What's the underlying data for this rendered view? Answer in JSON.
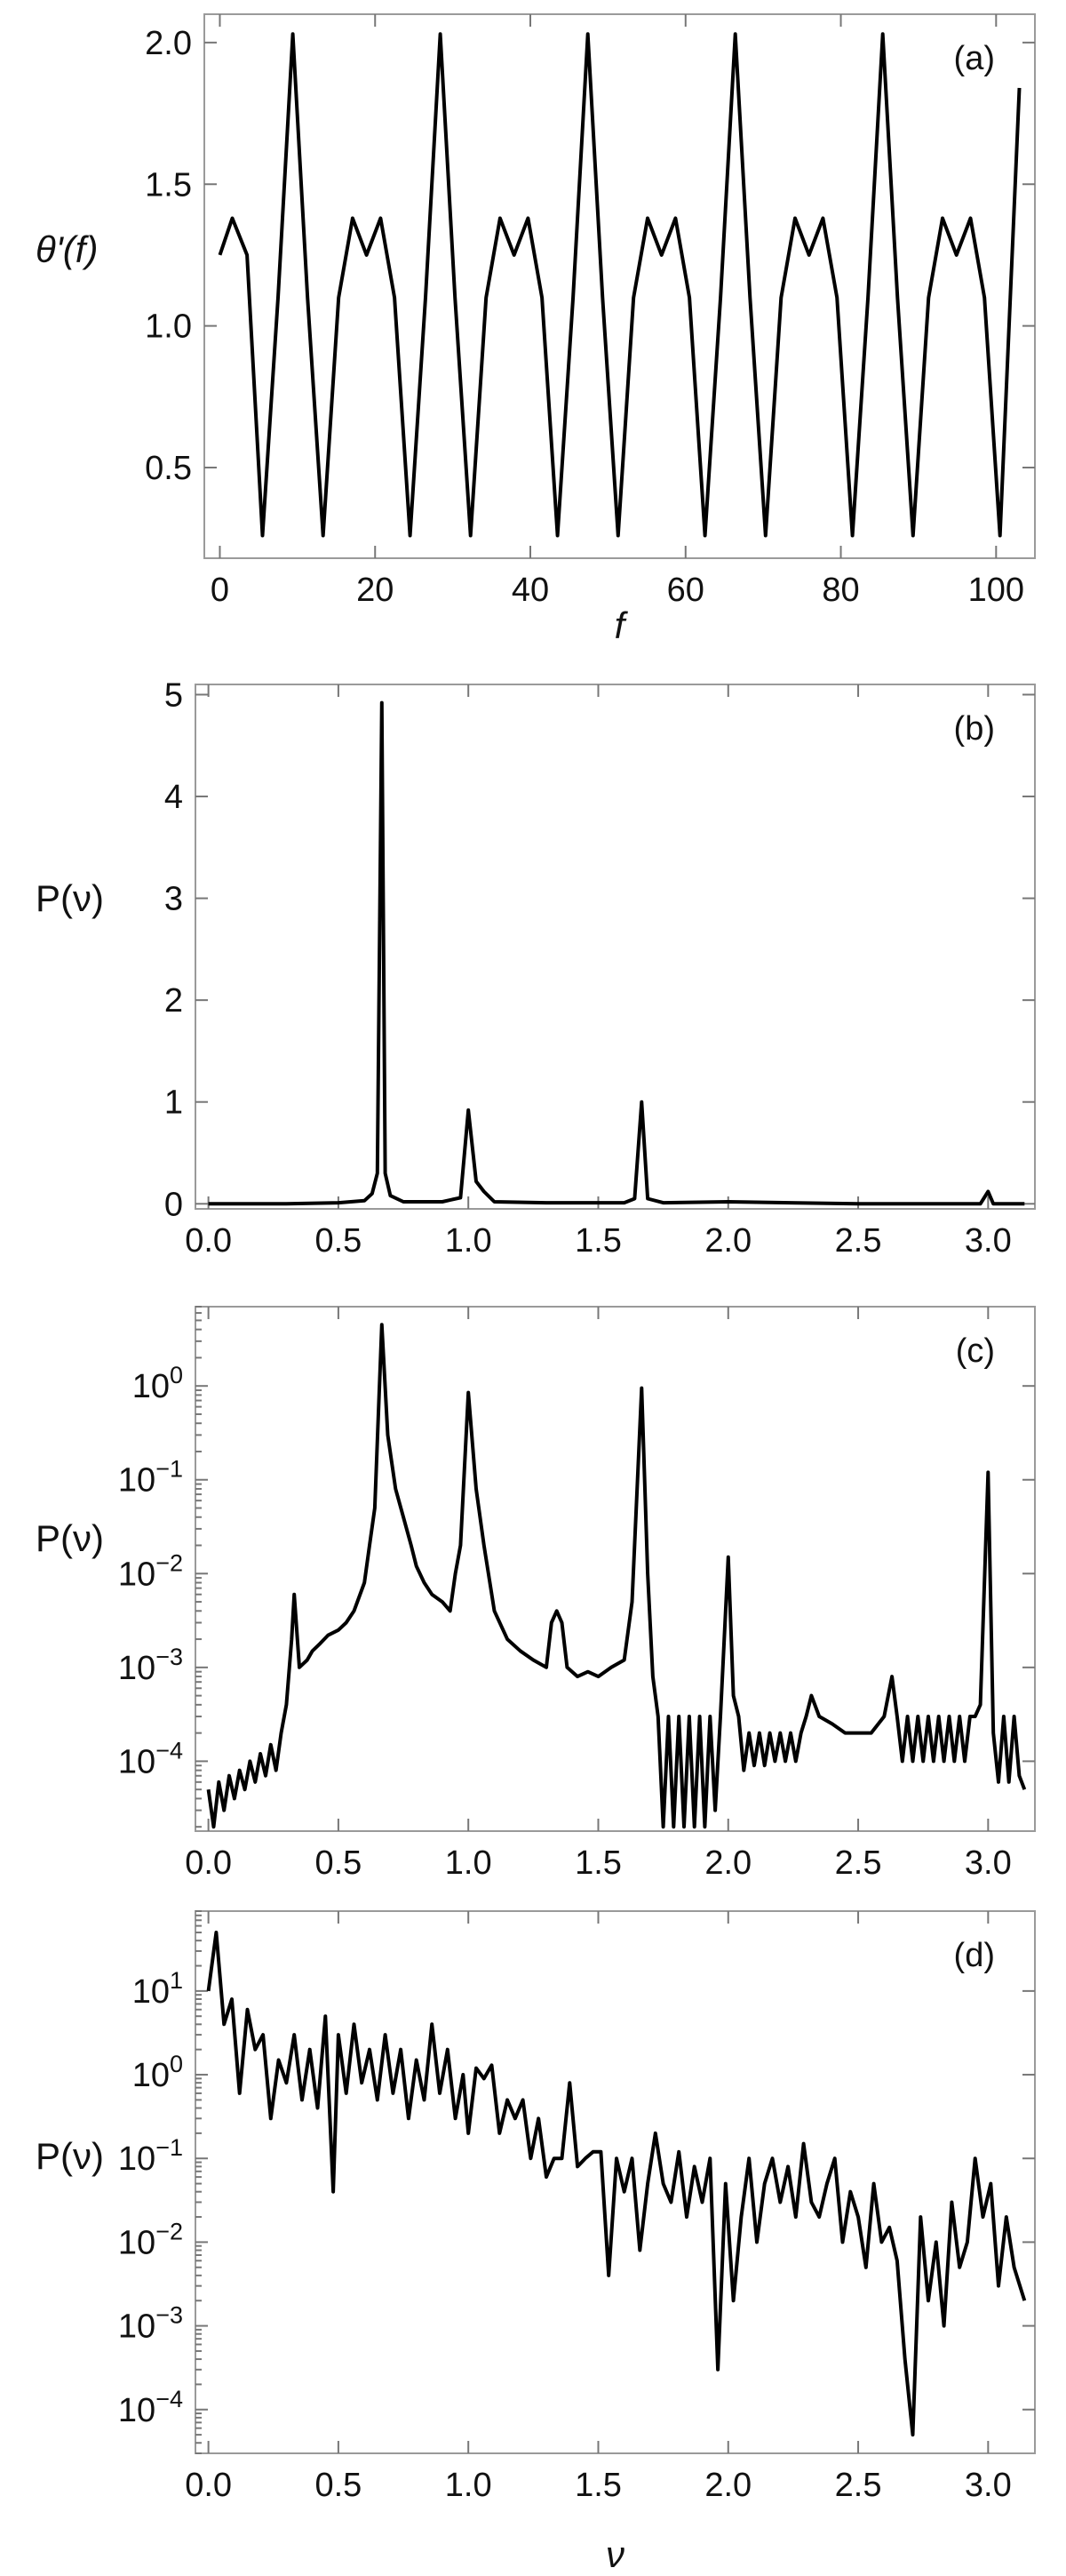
{
  "chart_data": [
    {
      "type": "line",
      "panel_label": "(a)",
      "xlabel": "f",
      "ylabel": "θ'(f)",
      "xlim": [
        -2,
        105
      ],
      "ylim": [
        0.18,
        2.1
      ],
      "y_scale": "linear",
      "x_ticks": [
        {
          "value": 0,
          "label": "0"
        },
        {
          "value": 20,
          "label": "20"
        },
        {
          "value": 40,
          "label": "40"
        },
        {
          "value": 60,
          "label": "60"
        },
        {
          "value": 80,
          "label": "80"
        },
        {
          "value": 100,
          "label": "100"
        }
      ],
      "y_ticks": [
        {
          "value": 0.5,
          "label": "0.5"
        },
        {
          "value": 1.0,
          "label": "1.0"
        },
        {
          "value": 1.5,
          "label": "1.5"
        },
        {
          "value": 2.0,
          "label": "2.0"
        }
      ],
      "series": [
        {
          "x": [
            0,
            1.6,
            3.5,
            5.5,
            7.5,
            9.4,
            11.3,
            13.3,
            15.3,
            17.1,
            18.9,
            20.7,
            22.5,
            24.5,
            26.5,
            28.4,
            30.3,
            32.3,
            34.3,
            36.1,
            37.9,
            39.7,
            41.5,
            43.5,
            45.5,
            47.4,
            49.3,
            51.3,
            53.3,
            55.1,
            56.9,
            58.7,
            60.5,
            62.5,
            64.5,
            66.4,
            68.3,
            70.3,
            72.3,
            74.1,
            75.9,
            77.7,
            79.5,
            81.5,
            83.5,
            85.4,
            87.3,
            89.3,
            91.3,
            93.1,
            94.9,
            96.7,
            98.5,
            100.5,
            103
          ],
          "y": [
            1.25,
            1.38,
            1.25,
            0.26,
            1.1,
            2.03,
            1.1,
            0.26,
            1.1,
            1.38,
            1.25,
            1.38,
            1.1,
            0.26,
            1.1,
            2.03,
            1.1,
            0.26,
            1.1,
            1.38,
            1.25,
            1.38,
            1.1,
            0.26,
            1.1,
            2.03,
            1.1,
            0.26,
            1.1,
            1.38,
            1.25,
            1.38,
            1.1,
            0.26,
            1.1,
            2.03,
            1.1,
            0.26,
            1.1,
            1.38,
            1.25,
            1.38,
            1.1,
            0.26,
            1.1,
            2.03,
            1.1,
            0.26,
            1.1,
            1.38,
            1.25,
            1.38,
            1.1,
            0.26,
            1.84
          ]
        }
      ]
    },
    {
      "type": "line",
      "panel_label": "(b)",
      "xlabel": "",
      "ylabel": "P(ν)",
      "xlim": [
        -0.05,
        3.18
      ],
      "ylim": [
        -0.05,
        5.1
      ],
      "y_scale": "linear",
      "x_ticks": [
        {
          "value": 0.0,
          "label": "0.0"
        },
        {
          "value": 0.5,
          "label": "0.5"
        },
        {
          "value": 1.0,
          "label": "1.0"
        },
        {
          "value": 1.5,
          "label": "1.5"
        },
        {
          "value": 2.0,
          "label": "2.0"
        },
        {
          "value": 2.5,
          "label": "2.5"
        },
        {
          "value": 3.0,
          "label": "3.0"
        }
      ],
      "y_ticks": [
        {
          "value": 0,
          "label": "0"
        },
        {
          "value": 1,
          "label": "1"
        },
        {
          "value": 2,
          "label": "2"
        },
        {
          "value": 3,
          "label": "3"
        },
        {
          "value": 4,
          "label": "4"
        },
        {
          "value": 5,
          "label": "5"
        }
      ],
      "series": [
        {
          "x": [
            0.0,
            0.3,
            0.5,
            0.6,
            0.63,
            0.65,
            0.667,
            0.68,
            0.7,
            0.75,
            0.9,
            0.97,
            1.0,
            1.03,
            1.06,
            1.1,
            1.3,
            1.6,
            1.64,
            1.667,
            1.69,
            1.75,
            2.0,
            2.5,
            2.97,
            3.0,
            3.02,
            3.14
          ],
          "y": [
            0.0,
            0.0,
            0.01,
            0.03,
            0.1,
            0.3,
            4.92,
            0.3,
            0.08,
            0.02,
            0.02,
            0.06,
            0.92,
            0.22,
            0.12,
            0.02,
            0.01,
            0.01,
            0.05,
            1.0,
            0.05,
            0.01,
            0.02,
            0.0,
            0.0,
            0.12,
            0.0,
            0.0
          ]
        }
      ]
    },
    {
      "type": "line",
      "panel_label": "(c)",
      "xlabel": "",
      "ylabel": "P(ν)",
      "xlim": [
        -0.05,
        3.18
      ],
      "ylim": [
        1.8e-05,
        7
      ],
      "y_scale": "log",
      "x_ticks": [
        {
          "value": 0.0,
          "label": "0.0"
        },
        {
          "value": 0.5,
          "label": "0.5"
        },
        {
          "value": 1.0,
          "label": "1.0"
        },
        {
          "value": 1.5,
          "label": "1.5"
        },
        {
          "value": 2.0,
          "label": "2.0"
        },
        {
          "value": 2.5,
          "label": "2.5"
        },
        {
          "value": 3.0,
          "label": "3.0"
        }
      ],
      "y_ticks": [
        {
          "value": 1,
          "base": "10",
          "exp": "0"
        },
        {
          "value": 0.1,
          "base": "10",
          "exp": "−1"
        },
        {
          "value": 0.01,
          "base": "10",
          "exp": "−2"
        },
        {
          "value": 0.001,
          "base": "10",
          "exp": "−3"
        },
        {
          "value": 0.0001,
          "base": "10",
          "exp": "−4"
        }
      ],
      "series": [
        {
          "x": [
            0.0,
            0.02,
            0.04,
            0.06,
            0.08,
            0.1,
            0.12,
            0.14,
            0.16,
            0.18,
            0.2,
            0.22,
            0.24,
            0.26,
            0.28,
            0.3,
            0.32,
            0.33,
            0.35,
            0.38,
            0.4,
            0.43,
            0.46,
            0.5,
            0.53,
            0.56,
            0.6,
            0.62,
            0.64,
            0.667,
            0.69,
            0.72,
            0.75,
            0.78,
            0.8,
            0.83,
            0.86,
            0.9,
            0.93,
            0.95,
            0.97,
            1.0,
            1.03,
            1.06,
            1.1,
            1.15,
            1.2,
            1.25,
            1.3,
            1.32,
            1.34,
            1.36,
            1.38,
            1.42,
            1.46,
            1.5,
            1.55,
            1.6,
            1.63,
            1.667,
            1.69,
            1.71,
            1.73,
            1.75,
            1.77,
            1.79,
            1.81,
            1.83,
            1.85,
            1.87,
            1.89,
            1.91,
            1.93,
            1.95,
            1.97,
            2.0,
            2.02,
            2.04,
            2.06,
            2.08,
            2.1,
            2.12,
            2.14,
            2.16,
            2.18,
            2.2,
            2.22,
            2.24,
            2.26,
            2.28,
            2.3,
            2.32,
            2.35,
            2.4,
            2.45,
            2.5,
            2.55,
            2.6,
            2.63,
            2.65,
            2.67,
            2.69,
            2.71,
            2.73,
            2.75,
            2.77,
            2.79,
            2.81,
            2.83,
            2.85,
            2.87,
            2.89,
            2.91,
            2.93,
            2.95,
            2.97,
            3.0,
            3.02,
            3.04,
            3.06,
            3.08,
            3.1,
            3.12,
            3.14
          ],
          "y": [
            5e-05,
            2e-05,
            6e-05,
            3e-05,
            7e-05,
            4e-05,
            8e-05,
            5e-05,
            0.0001,
            6e-05,
            0.00012,
            7e-05,
            0.00015,
            8e-05,
            0.0002,
            0.0004,
            0.002,
            0.006,
            0.001,
            0.0012,
            0.0015,
            0.0018,
            0.0022,
            0.0025,
            0.003,
            0.004,
            0.008,
            0.02,
            0.05,
            4.5,
            0.3,
            0.08,
            0.04,
            0.02,
            0.012,
            0.008,
            0.006,
            0.005,
            0.004,
            0.01,
            0.02,
            0.85,
            0.08,
            0.02,
            0.004,
            0.002,
            0.0015,
            0.0012,
            0.001,
            0.003,
            0.004,
            0.003,
            0.001,
            0.0008,
            0.0009,
            0.0008,
            0.001,
            0.0012,
            0.005,
            0.95,
            0.01,
            0.0008,
            0.0003,
            2e-05,
            0.0003,
            2e-05,
            0.0003,
            2e-05,
            0.0003,
            2e-05,
            0.0003,
            2e-05,
            0.0003,
            3e-05,
            0.0003,
            0.015,
            0.0005,
            0.0003,
            8e-05,
            0.0002,
            9e-05,
            0.0002,
            9e-05,
            0.0002,
            0.0001,
            0.0002,
            0.0001,
            0.0002,
            0.0001,
            0.0002,
            0.0003,
            0.0005,
            0.0003,
            0.00025,
            0.0002,
            0.0002,
            0.0002,
            0.0003,
            0.0008,
            0.0003,
            0.0001,
            0.0003,
            0.0001,
            0.0003,
            0.0001,
            0.0003,
            0.0001,
            0.0003,
            0.0001,
            0.0003,
            0.0001,
            0.0003,
            0.0001,
            0.0003,
            0.0003,
            0.0004,
            0.12,
            0.0002,
            6e-05,
            0.0003,
            6e-05,
            0.0003,
            7e-05,
            5e-05
          ]
        }
      ]
    },
    {
      "type": "line",
      "panel_label": "(d)",
      "xlabel": "ν",
      "ylabel": "P(ν)",
      "xlim": [
        -0.05,
        3.18
      ],
      "ylim": [
        3e-05,
        90
      ],
      "y_scale": "log",
      "x_ticks": [
        {
          "value": 0.0,
          "label": "0.0"
        },
        {
          "value": 0.5,
          "label": "0.5"
        },
        {
          "value": 1.0,
          "label": "1.0"
        },
        {
          "value": 1.5,
          "label": "1.5"
        },
        {
          "value": 2.0,
          "label": "2.0"
        },
        {
          "value": 2.5,
          "label": "2.5"
        },
        {
          "value": 3.0,
          "label": "3.0"
        }
      ],
      "y_ticks": [
        {
          "value": 10,
          "base": "10",
          "exp": "1"
        },
        {
          "value": 1,
          "base": "10",
          "exp": "0"
        },
        {
          "value": 0.1,
          "base": "10",
          "exp": "−1"
        },
        {
          "value": 0.01,
          "base": "10",
          "exp": "−2"
        },
        {
          "value": 0.001,
          "base": "10",
          "exp": "−3"
        },
        {
          "value": 0.0001,
          "base": "10",
          "exp": "−4"
        }
      ],
      "series": [
        {
          "x": [
            0.0,
            0.03,
            0.06,
            0.09,
            0.12,
            0.15,
            0.18,
            0.21,
            0.24,
            0.27,
            0.3,
            0.33,
            0.36,
            0.39,
            0.42,
            0.45,
            0.48,
            0.5,
            0.53,
            0.56,
            0.59,
            0.62,
            0.65,
            0.68,
            0.71,
            0.74,
            0.77,
            0.8,
            0.83,
            0.86,
            0.89,
            0.92,
            0.95,
            0.98,
            1.0,
            1.03,
            1.06,
            1.09,
            1.12,
            1.15,
            1.18,
            1.21,
            1.24,
            1.27,
            1.3,
            1.33,
            1.36,
            1.39,
            1.42,
            1.45,
            1.48,
            1.51,
            1.54,
            1.57,
            1.6,
            1.63,
            1.66,
            1.69,
            1.72,
            1.75,
            1.78,
            1.81,
            1.84,
            1.87,
            1.9,
            1.93,
            1.96,
            1.99,
            2.02,
            2.05,
            2.08,
            2.11,
            2.14,
            2.17,
            2.2,
            2.23,
            2.26,
            2.29,
            2.32,
            2.35,
            2.38,
            2.41,
            2.44,
            2.47,
            2.5,
            2.53,
            2.56,
            2.59,
            2.62,
            2.65,
            2.68,
            2.71,
            2.74,
            2.77,
            2.8,
            2.83,
            2.86,
            2.89,
            2.92,
            2.95,
            2.98,
            3.01,
            3.04,
            3.07,
            3.1,
            3.14
          ],
          "y": [
            10,
            50,
            4,
            8,
            0.6,
            6,
            2,
            3,
            0.3,
            1.5,
            0.8,
            3,
            0.5,
            2,
            0.4,
            5,
            0.04,
            3,
            0.6,
            4,
            0.8,
            2,
            0.5,
            3,
            0.6,
            2,
            0.3,
            1.5,
            0.5,
            4,
            0.6,
            2,
            0.3,
            1,
            0.2,
            1.2,
            0.9,
            1.3,
            0.2,
            0.5,
            0.3,
            0.5,
            0.1,
            0.3,
            0.06,
            0.1,
            0.1,
            0.8,
            0.08,
            0.1,
            0.12,
            0.12,
            0.004,
            0.1,
            0.04,
            0.1,
            0.008,
            0.05,
            0.2,
            0.05,
            0.03,
            0.12,
            0.02,
            0.08,
            0.03,
            0.1,
            0.0003,
            0.05,
            0.002,
            0.02,
            0.1,
            0.01,
            0.05,
            0.1,
            0.03,
            0.08,
            0.02,
            0.15,
            0.03,
            0.02,
            0.05,
            0.1,
            0.01,
            0.04,
            0.02,
            0.005,
            0.05,
            0.01,
            0.015,
            0.006,
            0.0004,
            5e-05,
            0.02,
            0.002,
            0.01,
            0.001,
            0.03,
            0.005,
            0.01,
            0.1,
            0.02,
            0.05,
            0.003,
            0.02,
            0.005,
            0.002
          ]
        }
      ]
    }
  ]
}
